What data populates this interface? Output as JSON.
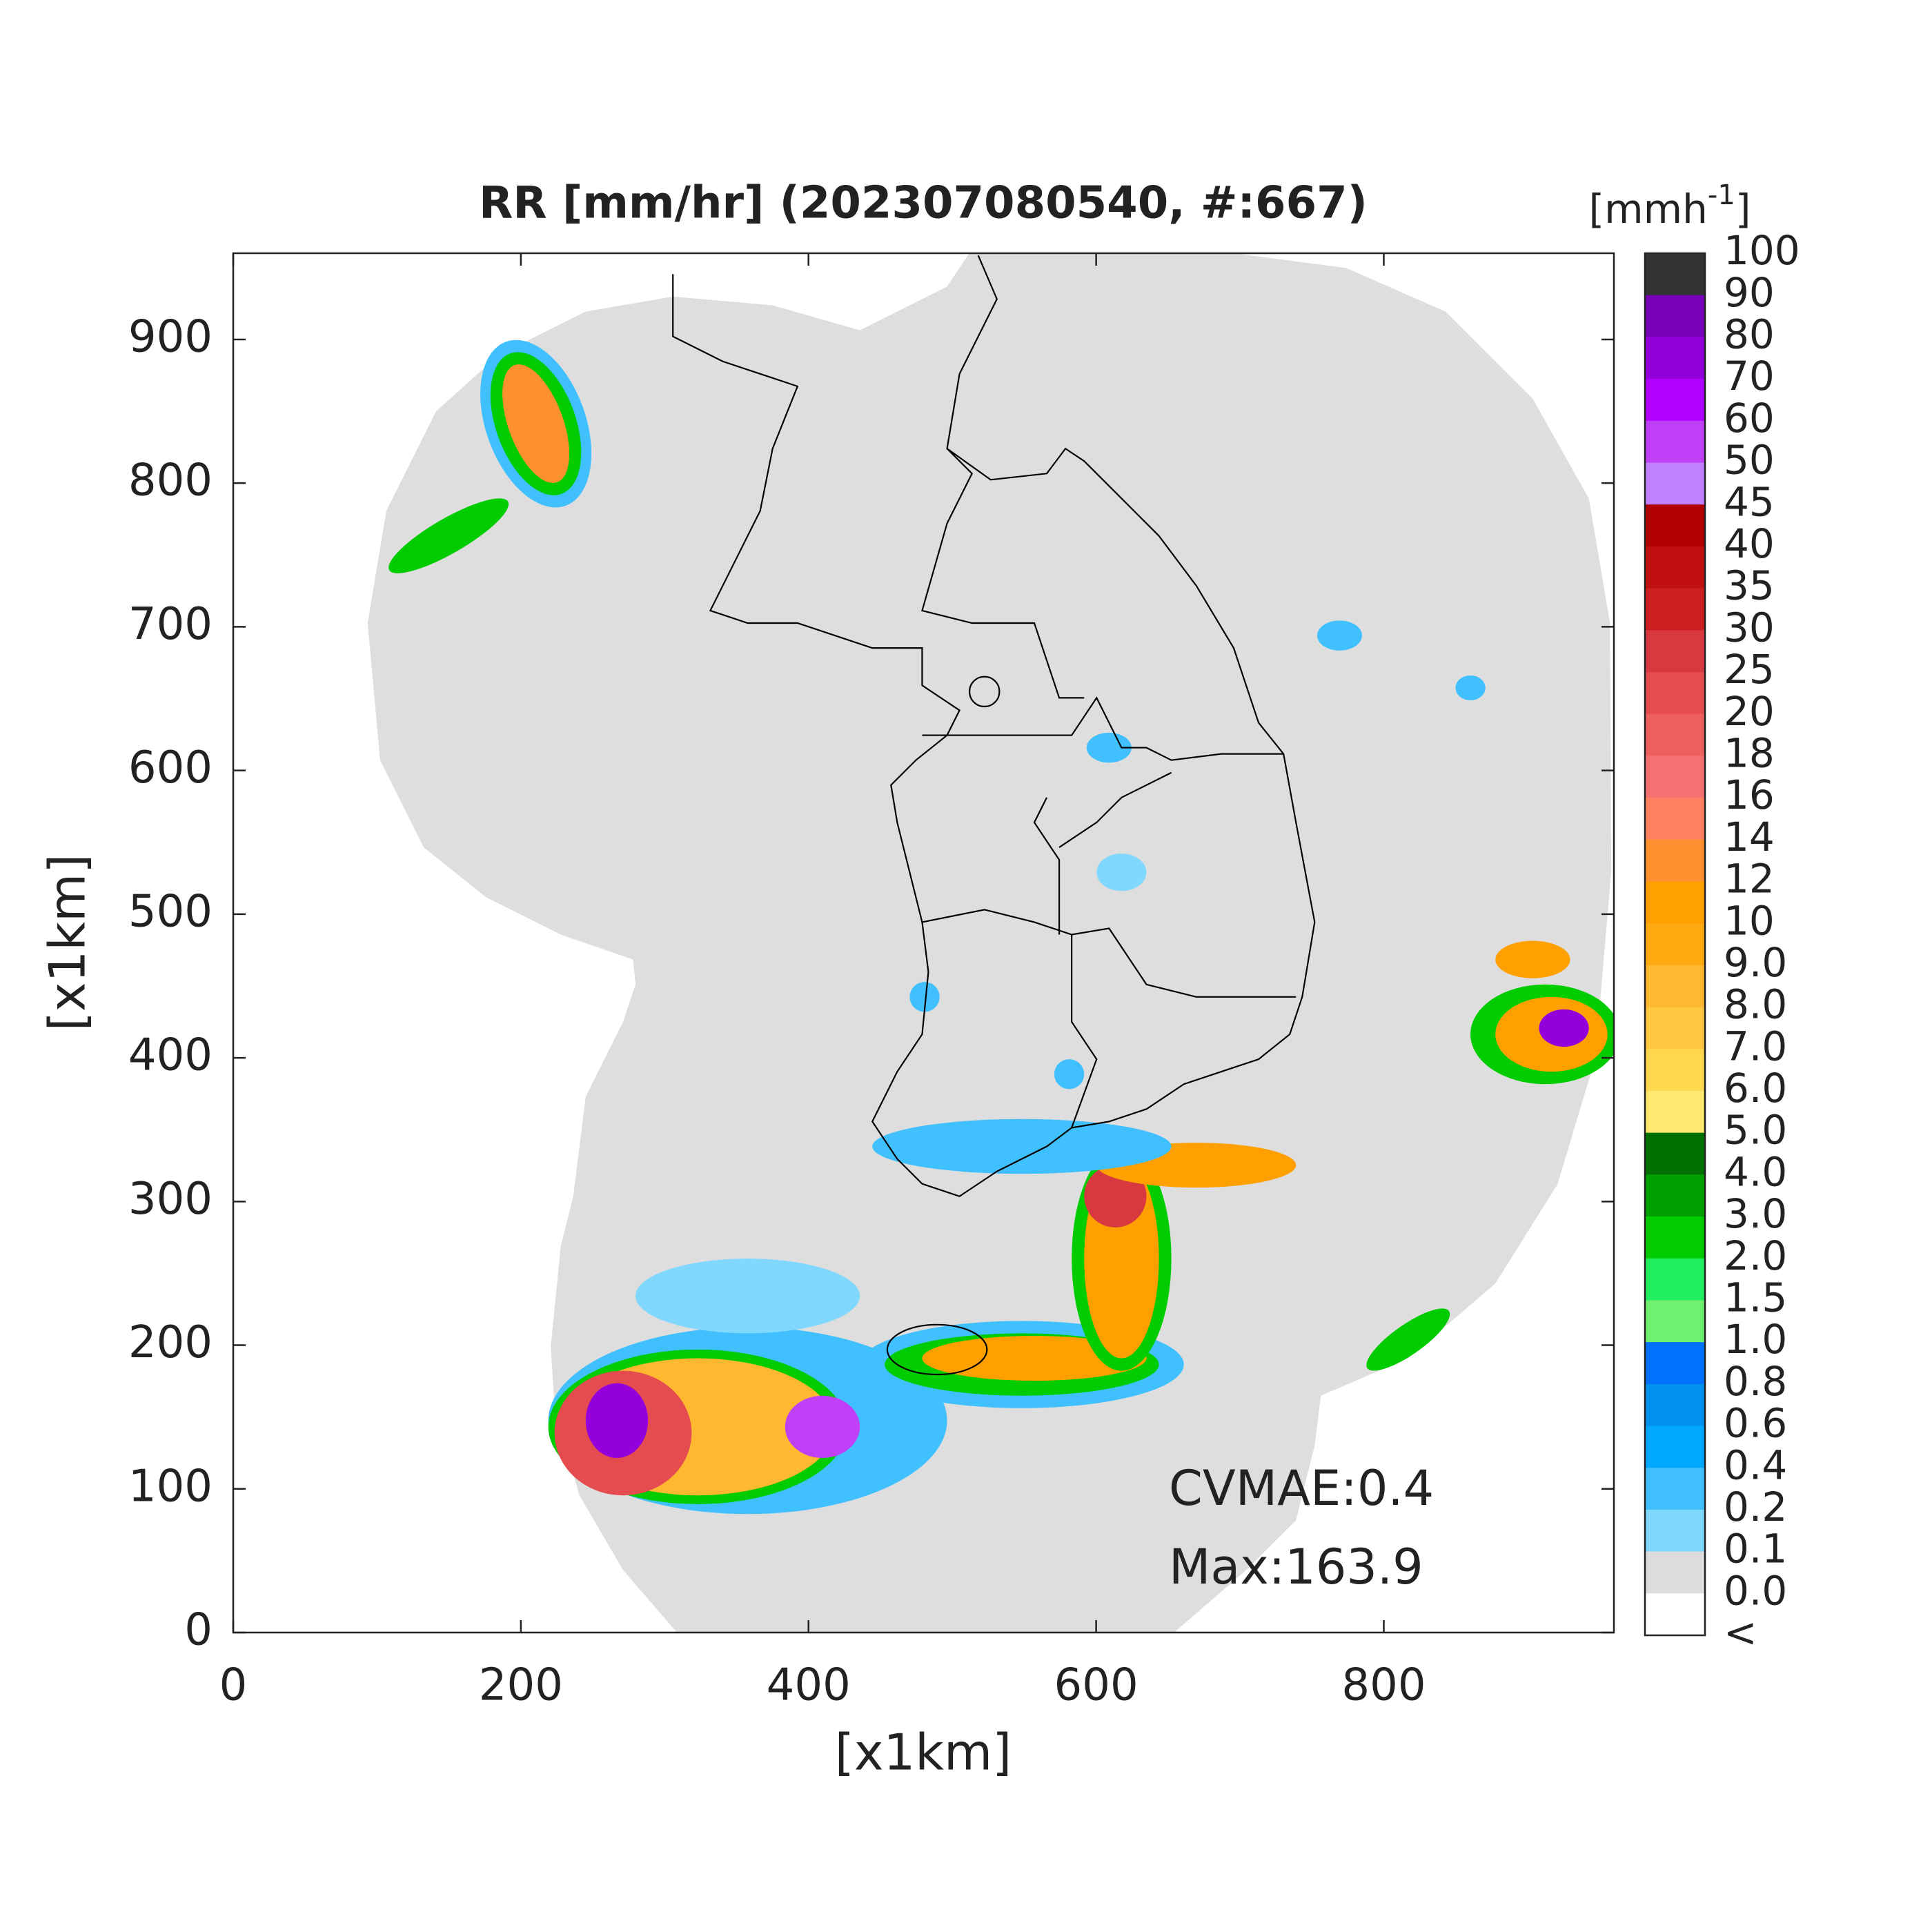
{
  "plot": {
    "title": "RR [mm/hr] (202307080540, #:667)",
    "xlabel": "[x1km]",
    "ylabel": "[x1km]",
    "xlim": [
      0,
      960
    ],
    "ylim": [
      0,
      960
    ],
    "xticks": [
      0,
      200,
      400,
      600,
      800
    ],
    "yticks": [
      0,
      100,
      200,
      300,
      400,
      500,
      600,
      700,
      800,
      900
    ],
    "annotations": [
      "CVMAE:0.4",
      "Max:163.9"
    ]
  },
  "colorbar": {
    "unit_base": "[mmh",
    "unit_sup": "-1",
    "unit_end": "]",
    "labels": [
      "100",
      "90",
      "80",
      "70",
      "60",
      "50",
      "45",
      "40",
      "35",
      "30",
      "25",
      "20",
      "18",
      "16",
      "14",
      "12",
      "10",
      "9.0",
      "8.0",
      "7.0",
      "6.0",
      "5.0",
      "4.0",
      "3.0",
      "2.0",
      "1.5",
      "1.0",
      "0.8",
      "0.6",
      "0.4",
      "0.2",
      "0.1",
      "0.0",
      "<"
    ],
    "colors": [
      "#333333",
      "#7800b8",
      "#9400dc",
      "#b000ff",
      "#c040f8",
      "#c080ff",
      "#b00000",
      "#c01010",
      "#cc2020",
      "#d83840",
      "#e44c50",
      "#ee6060",
      "#f57070",
      "#ff8060",
      "#ff9030",
      "#ffa000",
      "#ffaa10",
      "#ffb830",
      "#ffc840",
      "#ffd850",
      "#ffe870",
      "#007000",
      "#00a000",
      "#00cc00",
      "#20ee60",
      "#70f070",
      "#0070ff",
      "#0090f0",
      "#00a8ff",
      "#40c0ff",
      "#80d8ff",
      "#dcdcdc",
      "#ffffff"
    ]
  }
}
